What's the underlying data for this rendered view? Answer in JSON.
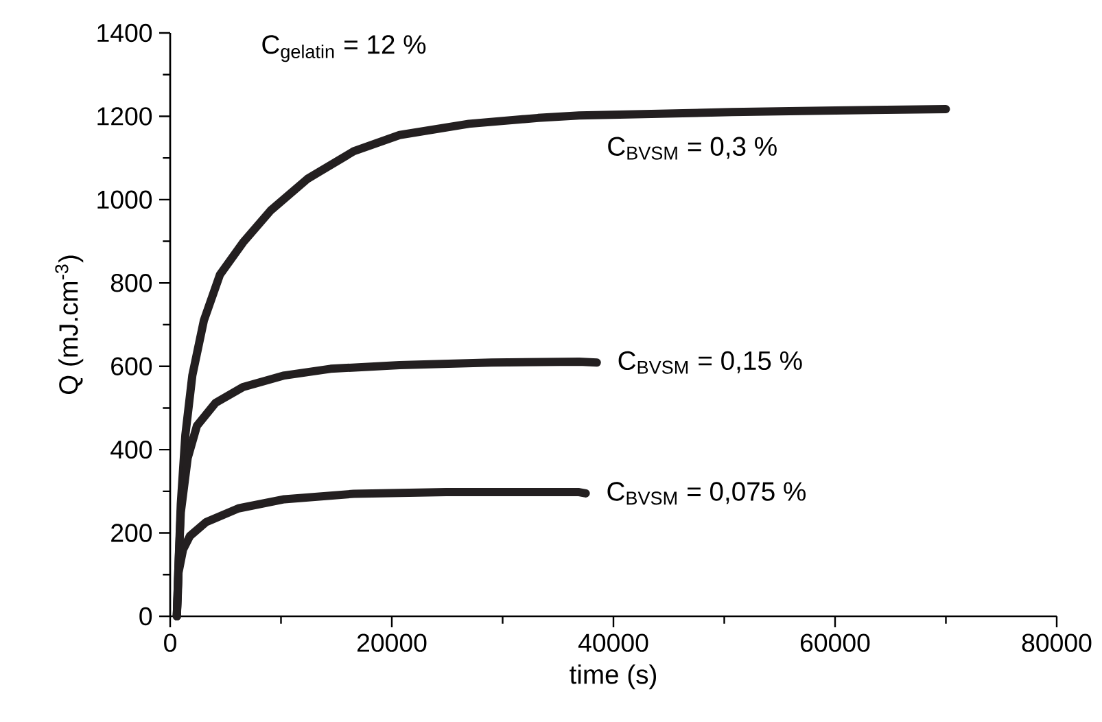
{
  "chart_data": {
    "type": "line",
    "xlabel": "time (s)",
    "ylabel": "Q (mJ.cm$^{-3}$)",
    "annotations": [
      "C$_{gelatin}$ = 12 %"
    ],
    "xlim": [
      0,
      80000
    ],
    "ylim": [
      0,
      1400
    ],
    "xticks": [
      0,
      20000,
      40000,
      60000,
      80000
    ],
    "yticks": [
      0,
      200,
      400,
      600,
      800,
      1000,
      1200,
      1400
    ],
    "grid": false,
    "legend": false,
    "marker": "none",
    "line_style": "solid",
    "series": [
      {
        "name": "C$_{BVSM}$ = 0,3 %",
        "color": "#231f20",
        "x": [
          600,
          750,
          960,
          1370,
          2000,
          3040,
          4490,
          6570,
          9070,
          12400,
          16560,
          20700,
          26960,
          33200,
          36900,
          42000,
          50700,
          60000,
          70000
        ],
        "values": [
          0,
          120,
          270,
          435,
          578,
          710,
          820,
          897,
          974,
          1050,
          1116,
          1155,
          1182,
          1196,
          1202,
          1205,
          1210,
          1214,
          1217
        ]
      },
      {
        "name": "C$_{BVSM}$ = 0,15 %",
        "color": "#231f20",
        "x": [
          600,
          750,
          960,
          1580,
          2410,
          4080,
          6570,
          10300,
          14480,
          20700,
          29000,
          36900,
          38500
        ],
        "values": [
          0,
          120,
          250,
          380,
          457,
          512,
          550,
          578,
          594,
          603,
          609,
          611,
          609
        ]
      },
      {
        "name": "C$_{BVSM}$ = 0,075 %",
        "color": "#231f20",
        "x": [
          600,
          700,
          750,
          1160,
          1790,
          3240,
          6160,
          10300,
          16560,
          24900,
          36900,
          37500
        ],
        "values": [
          0,
          60,
          105,
          160,
          193,
          226,
          259,
          281,
          294,
          298,
          298,
          295
        ]
      }
    ]
  }
}
